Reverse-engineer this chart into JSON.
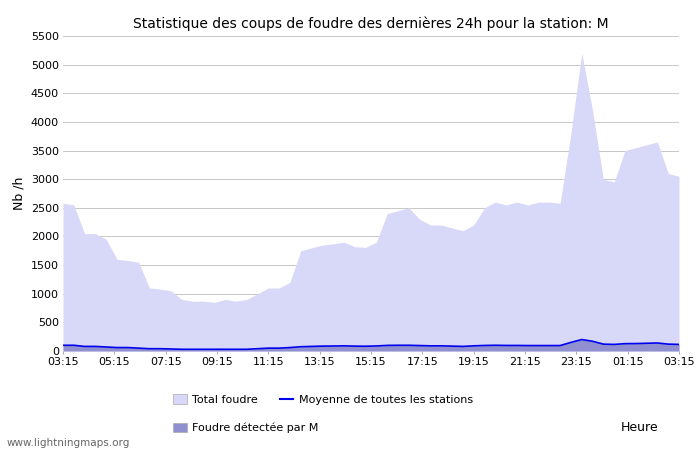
{
  "title": "Statistique des coups de foudre des dernières 24h pour la station: M",
  "xlabel": "Heure",
  "ylabel": "Nb /h",
  "ylim": [
    0,
    5500
  ],
  "yticks": [
    0,
    500,
    1000,
    1500,
    2000,
    2500,
    3000,
    3500,
    4000,
    4500,
    5000,
    5500
  ],
  "xtick_labels": [
    "03:15",
    "05:15",
    "07:15",
    "09:15",
    "11:15",
    "13:15",
    "15:15",
    "17:15",
    "19:15",
    "21:15",
    "23:15",
    "01:15",
    "03:15"
  ],
  "bg_color": "#ffffff",
  "plot_bg_color": "#ffffff",
  "grid_color": "#c8c8c8",
  "total_foudre_color": "#d8d8f8",
  "foudre_M_color": "#9090d0",
  "moyenne_color": "#0000ee",
  "watermark": "www.lightningmaps.org",
  "total_foudre_values": [
    2580,
    2550,
    2050,
    2050,
    1950,
    1600,
    1580,
    1550,
    1100,
    1080,
    1050,
    900,
    870,
    870,
    850,
    900,
    870,
    900,
    1000,
    1100,
    1100,
    1200,
    1750,
    1800,
    1850,
    1870,
    1900,
    1820,
    1810,
    1900,
    2400,
    2450,
    2500,
    2300,
    2200,
    2200,
    2150,
    2100,
    2200,
    2500,
    2600,
    2550,
    2600,
    2550,
    2600,
    2600,
    2580,
    3800,
    5200,
    4200,
    3000,
    2950,
    3500,
    3550,
    3600,
    3650,
    3100,
    3050
  ],
  "foudre_M_values": [
    100,
    100,
    80,
    80,
    70,
    60,
    60,
    50,
    40,
    40,
    35,
    30,
    30,
    30,
    30,
    30,
    30,
    30,
    40,
    50,
    50,
    60,
    75,
    80,
    85,
    87,
    90,
    85,
    83,
    88,
    98,
    100,
    100,
    95,
    90,
    90,
    85,
    80,
    90,
    97,
    100,
    97,
    97,
    95,
    95,
    95,
    95,
    150,
    200,
    170,
    120,
    115,
    128,
    130,
    135,
    140,
    120,
    115
  ],
  "moyenne_values": [
    100,
    100,
    80,
    80,
    70,
    60,
    60,
    50,
    40,
    40,
    35,
    30,
    30,
    30,
    30,
    30,
    30,
    30,
    40,
    50,
    50,
    60,
    75,
    80,
    85,
    87,
    90,
    85,
    83,
    88,
    98,
    100,
    100,
    95,
    90,
    90,
    85,
    80,
    90,
    97,
    100,
    97,
    97,
    95,
    95,
    95,
    95,
    150,
    200,
    170,
    120,
    115,
    128,
    130,
    135,
    140,
    120,
    115
  ],
  "n_points": 58
}
